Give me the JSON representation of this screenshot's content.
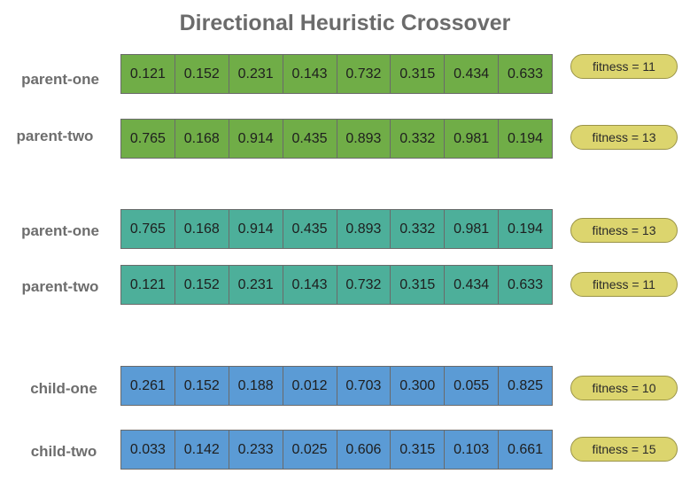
{
  "title": "Directional Heuristic Crossover",
  "rows": [
    {
      "label": "parent-one",
      "genes": [
        "0.121",
        "0.152",
        "0.231",
        "0.143",
        "0.732",
        "0.315",
        "0.434",
        "0.633"
      ],
      "fitness": "fitness = 11",
      "color": "#70ad47"
    },
    {
      "label": "parent-two",
      "genes": [
        "0.765",
        "0.168",
        "0.914",
        "0.435",
        "0.893",
        "0.332",
        "0.981",
        "0.194"
      ],
      "fitness": "fitness = 13",
      "color": "#70ad47"
    },
    {
      "label": "parent-one",
      "genes": [
        "0.765",
        "0.168",
        "0.914",
        "0.435",
        "0.893",
        "0.332",
        "0.981",
        "0.194"
      ],
      "fitness": "fitness = 13",
      "color": "#4daf9a"
    },
    {
      "label": "parent-two",
      "genes": [
        "0.121",
        "0.152",
        "0.231",
        "0.143",
        "0.732",
        "0.315",
        "0.434",
        "0.633"
      ],
      "fitness": "fitness = 11",
      "color": "#4daf9a"
    },
    {
      "label": "child-one",
      "genes": [
        "0.261",
        "0.152",
        "0.188",
        "0.012",
        "0.703",
        "0.300",
        "0.055",
        "0.825"
      ],
      "fitness": "fitness = 10",
      "color": "#5b9bd5"
    },
    {
      "label": "child-two",
      "genes": [
        "0.033",
        "0.142",
        "0.233",
        "0.025",
        "0.606",
        "0.315",
        "0.103",
        "0.661"
      ],
      "fitness": "fitness = 15",
      "color": "#5b9bd5"
    }
  ],
  "colors": {
    "selected_parents": "#70ad47",
    "ordered_parents": "#4daf9a",
    "children": "#5b9bd5",
    "fitness_badge": "#dcd56e"
  }
}
